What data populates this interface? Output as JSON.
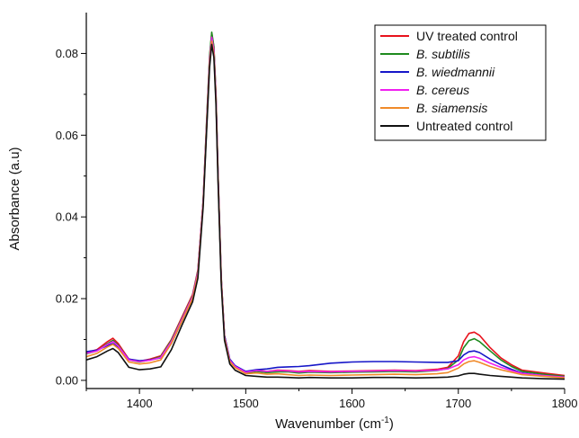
{
  "chart_data": {
    "type": "line",
    "title": "",
    "xlabel": "Wavenumber (cm",
    "xlabel_sup": "-1",
    "xlabel_close": ")",
    "ylabel": "Absorbance (a.u)",
    "xlim": [
      1350,
      1800
    ],
    "ylim": [
      -0.002,
      0.09
    ],
    "xticks": [
      1400,
      1500,
      1600,
      1700,
      1800
    ],
    "xtick_labels": [
      "1400",
      "1500",
      "1600",
      "1700",
      "1800"
    ],
    "yticks": [
      0.0,
      0.02,
      0.04,
      0.06,
      0.08
    ],
    "ytick_labels": [
      "0.00",
      "0.02",
      "0.04",
      "0.06",
      "0.08"
    ],
    "legend_position": "top-right",
    "grid": false,
    "x": [
      1350,
      1360,
      1370,
      1375,
      1380,
      1390,
      1400,
      1410,
      1420,
      1430,
      1440,
      1450,
      1455,
      1460,
      1463,
      1466,
      1468,
      1470,
      1472,
      1474,
      1477,
      1480,
      1485,
      1490,
      1500,
      1510,
      1520,
      1530,
      1540,
      1550,
      1560,
      1580,
      1600,
      1620,
      1640,
      1660,
      1680,
      1690,
      1700,
      1705,
      1710,
      1715,
      1720,
      1730,
      1740,
      1750,
      1760,
      1780,
      1800
    ],
    "series": [
      {
        "name": "UV treated control",
        "italic": false,
        "color": "#e8121c",
        "values": [
          0.0068,
          0.0075,
          0.0095,
          0.0103,
          0.009,
          0.0052,
          0.0047,
          0.0052,
          0.006,
          0.01,
          0.0155,
          0.021,
          0.027,
          0.044,
          0.062,
          0.079,
          0.085,
          0.0815,
          0.07,
          0.05,
          0.025,
          0.011,
          0.005,
          0.0035,
          0.002,
          0.0025,
          0.0022,
          0.0025,
          0.0024,
          0.0022,
          0.0024,
          0.0022,
          0.0023,
          0.0024,
          0.0025,
          0.0024,
          0.0027,
          0.0032,
          0.006,
          0.0095,
          0.0115,
          0.0118,
          0.011,
          0.008,
          0.0055,
          0.0038,
          0.0025,
          0.0018,
          0.0012
        ]
      },
      {
        "name": "B. subtilis",
        "italic": true,
        "color": "#1e8a1e",
        "values": [
          0.0065,
          0.0072,
          0.009,
          0.0098,
          0.0086,
          0.005,
          0.0045,
          0.005,
          0.0058,
          0.0098,
          0.0152,
          0.0207,
          0.0268,
          0.0442,
          0.0625,
          0.0795,
          0.0852,
          0.0817,
          0.0702,
          0.0502,
          0.0252,
          0.0108,
          0.0048,
          0.0033,
          0.0018,
          0.0022,
          0.0019,
          0.0021,
          0.0021,
          0.0018,
          0.002,
          0.0019,
          0.002,
          0.0021,
          0.0022,
          0.0021,
          0.0024,
          0.0029,
          0.005,
          0.008,
          0.0097,
          0.0102,
          0.0095,
          0.0072,
          0.005,
          0.0034,
          0.0022,
          0.0015,
          0.001
        ]
      },
      {
        "name": "B. wiedmannii",
        "italic": true,
        "color": "#1616c8",
        "values": [
          0.007,
          0.0074,
          0.0085,
          0.009,
          0.0082,
          0.0052,
          0.0048,
          0.005,
          0.0055,
          0.009,
          0.0145,
          0.02,
          0.0262,
          0.0435,
          0.061,
          0.078,
          0.0825,
          0.08,
          0.069,
          0.0495,
          0.0245,
          0.011,
          0.0052,
          0.0036,
          0.0022,
          0.0026,
          0.0028,
          0.0032,
          0.0033,
          0.0034,
          0.0036,
          0.0042,
          0.0045,
          0.0046,
          0.0046,
          0.0045,
          0.0044,
          0.0044,
          0.0048,
          0.0062,
          0.007,
          0.0072,
          0.0068,
          0.0052,
          0.0038,
          0.0027,
          0.0018,
          0.0012,
          0.0008
        ]
      },
      {
        "name": "B. cereus",
        "italic": true,
        "color": "#f020f0",
        "values": [
          0.0066,
          0.0072,
          0.0088,
          0.0095,
          0.0084,
          0.005,
          0.0046,
          0.0049,
          0.0056,
          0.0095,
          0.015,
          0.0205,
          0.0265,
          0.044,
          0.0615,
          0.0785,
          0.084,
          0.0808,
          0.0695,
          0.0498,
          0.0248,
          0.0106,
          0.0049,
          0.0034,
          0.002,
          0.0024,
          0.0022,
          0.0024,
          0.0023,
          0.0021,
          0.0022,
          0.0021,
          0.0022,
          0.0023,
          0.0024,
          0.0023,
          0.0025,
          0.0028,
          0.0038,
          0.005,
          0.0056,
          0.0058,
          0.0054,
          0.0042,
          0.0032,
          0.0024,
          0.0017,
          0.0012,
          0.0008
        ]
      },
      {
        "name": "B. siamensis",
        "italic": true,
        "color": "#f08a2a",
        "values": [
          0.0058,
          0.0066,
          0.0082,
          0.0088,
          0.0078,
          0.0045,
          0.004,
          0.0043,
          0.005,
          0.009,
          0.0145,
          0.02,
          0.0258,
          0.0432,
          0.0608,
          0.0775,
          0.083,
          0.0798,
          0.0685,
          0.049,
          0.0243,
          0.0104,
          0.0046,
          0.0031,
          0.0016,
          0.0018,
          0.0015,
          0.0016,
          0.0014,
          0.0012,
          0.0013,
          0.0012,
          0.0013,
          0.0014,
          0.0015,
          0.0014,
          0.0016,
          0.0019,
          0.003,
          0.004,
          0.0046,
          0.0048,
          0.0044,
          0.0034,
          0.0026,
          0.002,
          0.0014,
          0.001,
          0.0006
        ]
      },
      {
        "name": "Untreated control",
        "italic": false,
        "color": "#111111",
        "values": [
          0.005,
          0.0058,
          0.0072,
          0.0078,
          0.0068,
          0.0032,
          0.0026,
          0.0028,
          0.0033,
          0.0075,
          0.0135,
          0.0192,
          0.025,
          0.0425,
          0.06,
          0.0765,
          0.0822,
          0.079,
          0.0676,
          0.048,
          0.0235,
          0.0098,
          0.004,
          0.0025,
          0.0012,
          0.001,
          0.0008,
          0.0008,
          0.0007,
          0.0006,
          0.0007,
          0.0006,
          0.0006,
          0.0007,
          0.0007,
          0.0006,
          0.0007,
          0.0008,
          0.0011,
          0.0015,
          0.0017,
          0.0017,
          0.0015,
          0.0012,
          0.001,
          0.0008,
          0.0006,
          0.0004,
          0.0003
        ]
      }
    ]
  }
}
